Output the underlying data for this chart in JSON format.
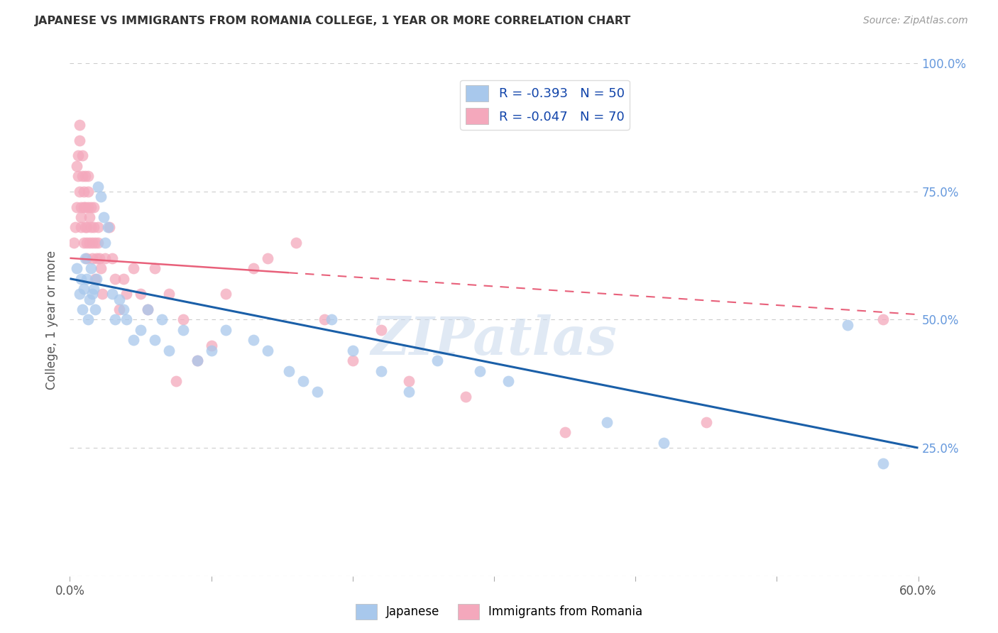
{
  "title": "JAPANESE VS IMMIGRANTS FROM ROMANIA COLLEGE, 1 YEAR OR MORE CORRELATION CHART",
  "source": "Source: ZipAtlas.com",
  "ylabel": "College, 1 year or more",
  "xlim": [
    0.0,
    0.6
  ],
  "ylim": [
    0.0,
    1.0
  ],
  "blue_R": -0.393,
  "blue_N": 50,
  "pink_R": -0.047,
  "pink_N": 70,
  "blue_color": "#A8C8EC",
  "pink_color": "#F4A8BC",
  "blue_line_color": "#1A5FA8",
  "pink_line_color": "#E8607A",
  "blue_scatter_x": [
    0.005,
    0.007,
    0.008,
    0.009,
    0.01,
    0.011,
    0.012,
    0.013,
    0.014,
    0.015,
    0.016,
    0.017,
    0.018,
    0.019,
    0.02,
    0.022,
    0.024,
    0.025,
    0.027,
    0.03,
    0.032,
    0.035,
    0.038,
    0.04,
    0.045,
    0.05,
    0.055,
    0.06,
    0.065,
    0.07,
    0.08,
    0.09,
    0.1,
    0.11,
    0.13,
    0.14,
    0.155,
    0.165,
    0.175,
    0.185,
    0.2,
    0.22,
    0.24,
    0.26,
    0.29,
    0.31,
    0.38,
    0.42,
    0.55,
    0.575
  ],
  "blue_scatter_y": [
    0.6,
    0.55,
    0.58,
    0.52,
    0.56,
    0.62,
    0.58,
    0.5,
    0.54,
    0.6,
    0.55,
    0.56,
    0.52,
    0.58,
    0.76,
    0.74,
    0.7,
    0.65,
    0.68,
    0.55,
    0.5,
    0.54,
    0.52,
    0.5,
    0.46,
    0.48,
    0.52,
    0.46,
    0.5,
    0.44,
    0.48,
    0.42,
    0.44,
    0.48,
    0.46,
    0.44,
    0.4,
    0.38,
    0.36,
    0.5,
    0.44,
    0.4,
    0.36,
    0.42,
    0.4,
    0.38,
    0.3,
    0.26,
    0.49,
    0.22
  ],
  "pink_scatter_x": [
    0.003,
    0.004,
    0.005,
    0.005,
    0.006,
    0.006,
    0.007,
    0.007,
    0.007,
    0.008,
    0.008,
    0.008,
    0.009,
    0.009,
    0.01,
    0.01,
    0.01,
    0.011,
    0.011,
    0.011,
    0.012,
    0.012,
    0.012,
    0.013,
    0.013,
    0.013,
    0.014,
    0.014,
    0.015,
    0.015,
    0.016,
    0.016,
    0.017,
    0.017,
    0.018,
    0.018,
    0.019,
    0.02,
    0.02,
    0.021,
    0.022,
    0.023,
    0.025,
    0.028,
    0.03,
    0.032,
    0.035,
    0.038,
    0.04,
    0.045,
    0.05,
    0.055,
    0.06,
    0.07,
    0.075,
    0.08,
    0.09,
    0.1,
    0.11,
    0.13,
    0.14,
    0.16,
    0.18,
    0.2,
    0.22,
    0.24,
    0.28,
    0.35,
    0.45,
    0.575
  ],
  "pink_scatter_y": [
    0.65,
    0.68,
    0.72,
    0.8,
    0.78,
    0.82,
    0.85,
    0.88,
    0.75,
    0.7,
    0.68,
    0.72,
    0.78,
    0.82,
    0.72,
    0.75,
    0.65,
    0.68,
    0.72,
    0.78,
    0.62,
    0.65,
    0.68,
    0.72,
    0.75,
    0.78,
    0.7,
    0.65,
    0.68,
    0.72,
    0.65,
    0.62,
    0.68,
    0.72,
    0.65,
    0.58,
    0.62,
    0.65,
    0.68,
    0.62,
    0.6,
    0.55,
    0.62,
    0.68,
    0.62,
    0.58,
    0.52,
    0.58,
    0.55,
    0.6,
    0.55,
    0.52,
    0.6,
    0.55,
    0.38,
    0.5,
    0.42,
    0.45,
    0.55,
    0.6,
    0.62,
    0.65,
    0.5,
    0.42,
    0.48,
    0.38,
    0.35,
    0.28,
    0.3,
    0.5
  ],
  "watermark": "ZIPatlas",
  "background_color": "#FFFFFF",
  "grid_color": "#CCCCCC"
}
